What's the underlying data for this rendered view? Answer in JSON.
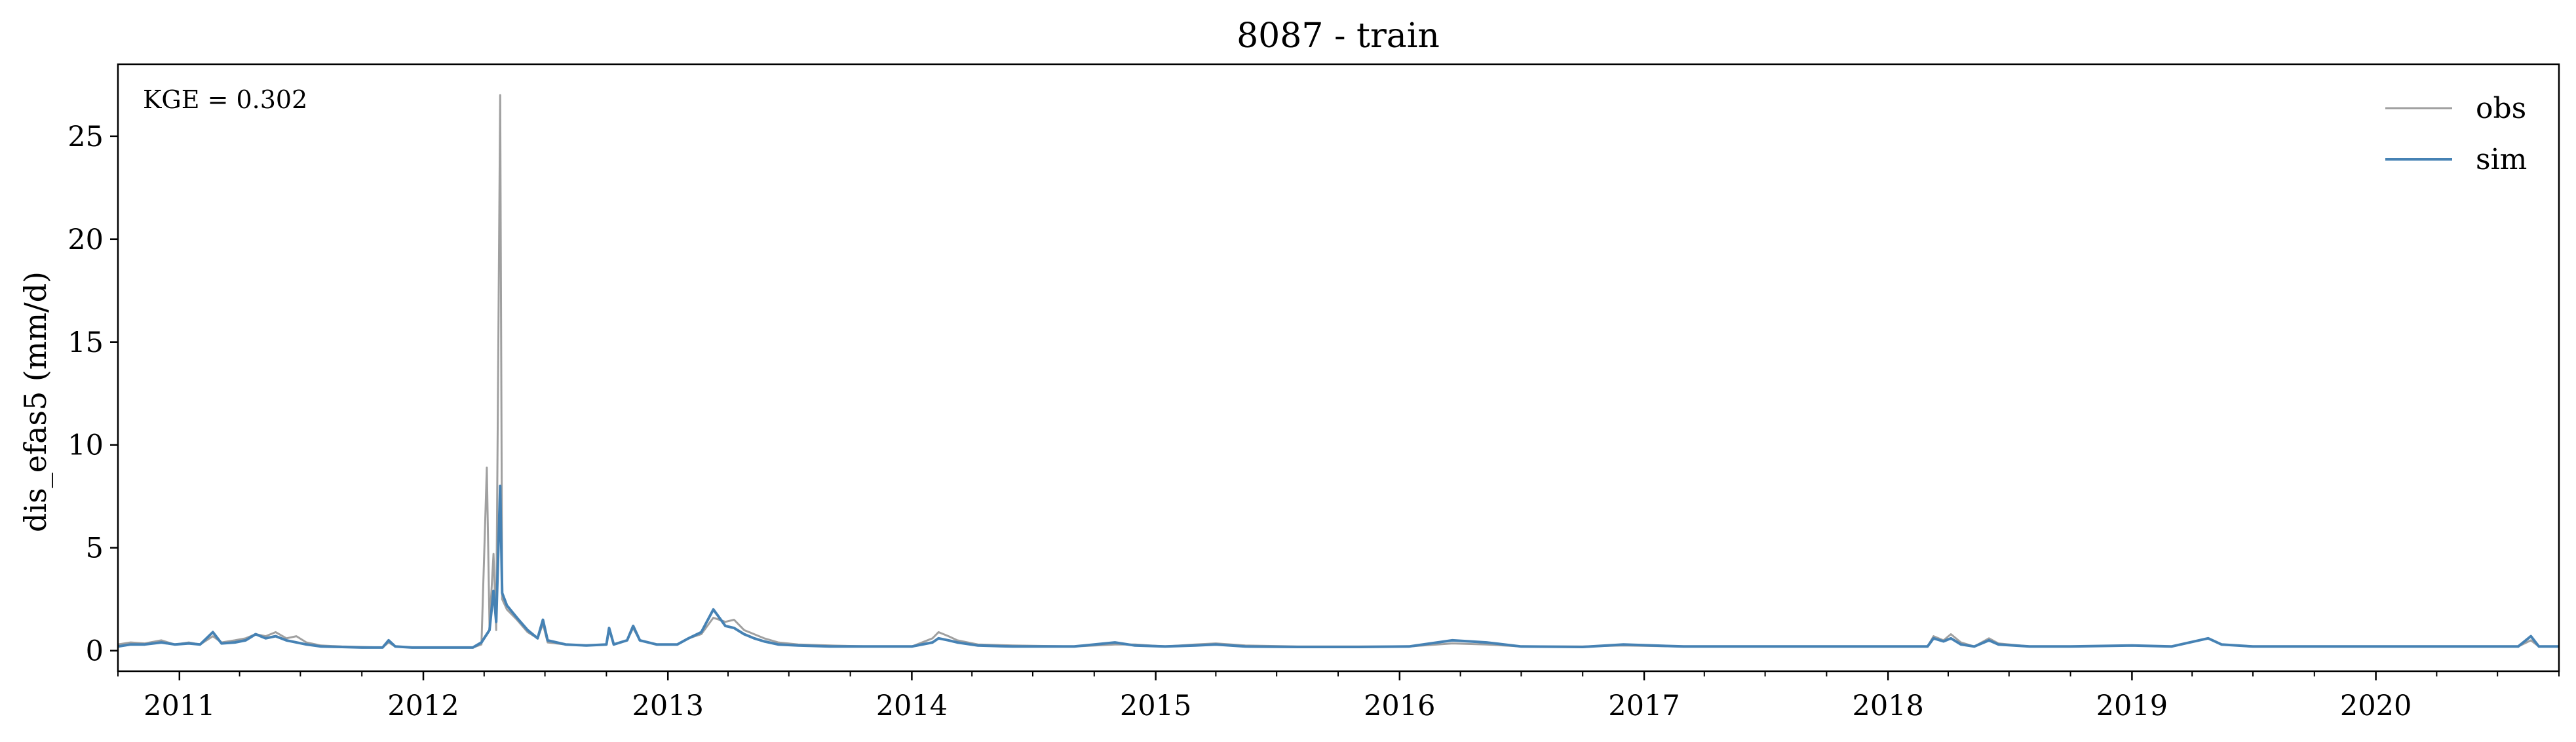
{
  "chart_data": {
    "type": "line",
    "title": "8087 - train",
    "ylabel": "dis_efas5 (mm/d)",
    "annotation": "KGE = 0.302",
    "xlim": [
      "2010-10-01",
      "2020-10-01"
    ],
    "ylim": [
      -1.0,
      28.5
    ],
    "yticks": [
      0,
      5,
      10,
      15,
      20,
      25
    ],
    "ytick_labels": [
      "0",
      "5",
      "10",
      "15",
      "20",
      "25"
    ],
    "xtick_labels": [
      "2011",
      "2012",
      "2013",
      "2014",
      "2015",
      "2016",
      "2017",
      "2018",
      "2019",
      "2020"
    ],
    "xtick_dates": [
      "2011-01-01",
      "2012-01-01",
      "2013-01-01",
      "2014-01-01",
      "2015-01-01",
      "2016-01-01",
      "2017-01-01",
      "2018-01-01",
      "2019-01-01",
      "2020-01-01"
    ],
    "grid": false,
    "legend": "top-right",
    "series": [
      {
        "name": "obs",
        "color": "#a0a0a0",
        "points": [
          [
            "2010-10-01",
            0.3
          ],
          [
            "2010-10-20",
            0.4
          ],
          [
            "2010-11-10",
            0.35
          ],
          [
            "2010-12-05",
            0.5
          ],
          [
            "2010-12-25",
            0.3
          ],
          [
            "2011-01-15",
            0.4
          ],
          [
            "2011-02-01",
            0.3
          ],
          [
            "2011-02-20",
            0.7
          ],
          [
            "2011-03-05",
            0.4
          ],
          [
            "2011-03-25",
            0.5
          ],
          [
            "2011-04-10",
            0.6
          ],
          [
            "2011-04-25",
            0.8
          ],
          [
            "2011-05-10",
            0.7
          ],
          [
            "2011-05-25",
            0.9
          ],
          [
            "2011-06-10",
            0.6
          ],
          [
            "2011-06-25",
            0.7
          ],
          [
            "2011-07-10",
            0.4
          ],
          [
            "2011-08-01",
            0.25
          ],
          [
            "2011-09-01",
            0.2
          ],
          [
            "2011-10-01",
            0.18
          ],
          [
            "2011-11-01",
            0.15
          ],
          [
            "2011-11-10",
            0.4
          ],
          [
            "2011-11-20",
            0.2
          ],
          [
            "2011-12-15",
            0.15
          ],
          [
            "2012-01-15",
            0.15
          ],
          [
            "2012-02-15",
            0.15
          ],
          [
            "2012-03-15",
            0.15
          ],
          [
            "2012-03-28",
            0.3
          ],
          [
            "2012-04-05",
            8.9
          ],
          [
            "2012-04-09",
            1.2
          ],
          [
            "2012-04-15",
            4.7
          ],
          [
            "2012-04-19",
            1.0
          ],
          [
            "2012-04-25",
            27.0
          ],
          [
            "2012-04-28",
            2.5
          ],
          [
            "2012-05-05",
            2.0
          ],
          [
            "2012-05-20",
            1.5
          ],
          [
            "2012-06-05",
            0.9
          ],
          [
            "2012-06-20",
            0.6
          ],
          [
            "2012-06-28",
            1.3
          ],
          [
            "2012-07-05",
            0.4
          ],
          [
            "2012-08-01",
            0.3
          ],
          [
            "2012-09-01",
            0.25
          ],
          [
            "2012-10-01",
            0.3
          ],
          [
            "2012-10-05",
            1.0
          ],
          [
            "2012-10-12",
            0.3
          ],
          [
            "2012-11-01",
            0.5
          ],
          [
            "2012-11-10",
            1.1
          ],
          [
            "2012-11-20",
            0.5
          ],
          [
            "2012-12-15",
            0.3
          ],
          [
            "2013-01-15",
            0.3
          ],
          [
            "2013-02-01",
            0.6
          ],
          [
            "2013-02-20",
            0.8
          ],
          [
            "2013-03-10",
            1.6
          ],
          [
            "2013-03-28",
            1.4
          ],
          [
            "2013-04-10",
            1.5
          ],
          [
            "2013-04-25",
            1.0
          ],
          [
            "2013-05-10",
            0.8
          ],
          [
            "2013-05-25",
            0.6
          ],
          [
            "2013-06-15",
            0.4
          ],
          [
            "2013-07-15",
            0.3
          ],
          [
            "2013-09-01",
            0.25
          ],
          [
            "2013-11-01",
            0.2
          ],
          [
            "2014-01-01",
            0.2
          ],
          [
            "2014-02-01",
            0.6
          ],
          [
            "2014-02-10",
            0.9
          ],
          [
            "2014-02-25",
            0.7
          ],
          [
            "2014-03-10",
            0.5
          ],
          [
            "2014-04-10",
            0.3
          ],
          [
            "2014-06-01",
            0.25
          ],
          [
            "2014-09-01",
            0.2
          ],
          [
            "2014-11-01",
            0.3
          ],
          [
            "2014-12-01",
            0.3
          ],
          [
            "2015-01-15",
            0.2
          ],
          [
            "2015-03-01",
            0.3
          ],
          [
            "2015-04-01",
            0.35
          ],
          [
            "2015-05-15",
            0.25
          ],
          [
            "2015-08-01",
            0.2
          ],
          [
            "2015-11-01",
            0.2
          ],
          [
            "2016-01-15",
            0.2
          ],
          [
            "2016-03-20",
            0.35
          ],
          [
            "2016-05-10",
            0.3
          ],
          [
            "2016-07-01",
            0.2
          ],
          [
            "2016-10-01",
            0.2
          ],
          [
            "2016-12-01",
            0.25
          ],
          [
            "2017-03-01",
            0.2
          ],
          [
            "2017-06-01",
            0.2
          ],
          [
            "2017-09-01",
            0.2
          ],
          [
            "2017-12-01",
            0.2
          ],
          [
            "2018-03-01",
            0.2
          ],
          [
            "2018-03-10",
            0.7
          ],
          [
            "2018-03-25",
            0.5
          ],
          [
            "2018-04-05",
            0.8
          ],
          [
            "2018-04-20",
            0.4
          ],
          [
            "2018-05-10",
            0.2
          ],
          [
            "2018-06-01",
            0.6
          ],
          [
            "2018-06-15",
            0.35
          ],
          [
            "2018-08-01",
            0.2
          ],
          [
            "2018-10-01",
            0.2
          ],
          [
            "2019-01-01",
            0.25
          ],
          [
            "2019-03-01",
            0.2
          ],
          [
            "2019-04-25",
            0.6
          ],
          [
            "2019-05-15",
            0.3
          ],
          [
            "2019-07-01",
            0.2
          ],
          [
            "2019-11-01",
            0.2
          ],
          [
            "2020-02-01",
            0.2
          ],
          [
            "2020-05-01",
            0.2
          ],
          [
            "2020-08-01",
            0.2
          ],
          [
            "2020-08-20",
            0.5
          ],
          [
            "2020-09-01",
            0.2
          ],
          [
            "2020-10-01",
            0.2
          ]
        ]
      },
      {
        "name": "sim",
        "color": "#4682b4",
        "points": [
          [
            "2010-10-01",
            0.2
          ],
          [
            "2010-10-20",
            0.3
          ],
          [
            "2010-11-10",
            0.3
          ],
          [
            "2010-12-05",
            0.4
          ],
          [
            "2010-12-25",
            0.3
          ],
          [
            "2011-01-15",
            0.35
          ],
          [
            "2011-02-01",
            0.3
          ],
          [
            "2011-02-20",
            0.9
          ],
          [
            "2011-03-05",
            0.35
          ],
          [
            "2011-03-25",
            0.4
          ],
          [
            "2011-04-10",
            0.5
          ],
          [
            "2011-04-25",
            0.8
          ],
          [
            "2011-05-10",
            0.6
          ],
          [
            "2011-05-25",
            0.7
          ],
          [
            "2011-06-10",
            0.5
          ],
          [
            "2011-06-25",
            0.4
          ],
          [
            "2011-07-10",
            0.3
          ],
          [
            "2011-08-01",
            0.2
          ],
          [
            "2011-09-01",
            0.18
          ],
          [
            "2011-10-01",
            0.15
          ],
          [
            "2011-11-01",
            0.15
          ],
          [
            "2011-11-10",
            0.5
          ],
          [
            "2011-11-20",
            0.2
          ],
          [
            "2011-12-15",
            0.15
          ],
          [
            "2012-01-15",
            0.15
          ],
          [
            "2012-02-15",
            0.15
          ],
          [
            "2012-03-15",
            0.15
          ],
          [
            "2012-03-28",
            0.4
          ],
          [
            "2012-04-05",
            0.8
          ],
          [
            "2012-04-09",
            1.0
          ],
          [
            "2012-04-15",
            2.9
          ],
          [
            "2012-04-19",
            1.4
          ],
          [
            "2012-04-25",
            8.0
          ],
          [
            "2012-04-28",
            2.8
          ],
          [
            "2012-05-05",
            2.2
          ],
          [
            "2012-05-20",
            1.6
          ],
          [
            "2012-06-05",
            1.0
          ],
          [
            "2012-06-20",
            0.6
          ],
          [
            "2012-06-28",
            1.5
          ],
          [
            "2012-07-05",
            0.5
          ],
          [
            "2012-08-01",
            0.3
          ],
          [
            "2012-09-01",
            0.25
          ],
          [
            "2012-10-01",
            0.3
          ],
          [
            "2012-10-05",
            1.1
          ],
          [
            "2012-10-12",
            0.3
          ],
          [
            "2012-11-01",
            0.5
          ],
          [
            "2012-11-10",
            1.2
          ],
          [
            "2012-11-20",
            0.5
          ],
          [
            "2012-12-15",
            0.3
          ],
          [
            "2013-01-15",
            0.3
          ],
          [
            "2013-02-01",
            0.6
          ],
          [
            "2013-02-20",
            0.9
          ],
          [
            "2013-03-10",
            2.0
          ],
          [
            "2013-03-28",
            1.2
          ],
          [
            "2013-04-10",
            1.1
          ],
          [
            "2013-04-25",
            0.8
          ],
          [
            "2013-05-10",
            0.6
          ],
          [
            "2013-05-25",
            0.45
          ],
          [
            "2013-06-15",
            0.3
          ],
          [
            "2013-07-15",
            0.25
          ],
          [
            "2013-09-01",
            0.2
          ],
          [
            "2013-11-01",
            0.2
          ],
          [
            "2014-01-01",
            0.2
          ],
          [
            "2014-02-01",
            0.4
          ],
          [
            "2014-02-10",
            0.6
          ],
          [
            "2014-02-25",
            0.5
          ],
          [
            "2014-03-10",
            0.4
          ],
          [
            "2014-04-10",
            0.25
          ],
          [
            "2014-06-01",
            0.2
          ],
          [
            "2014-09-01",
            0.2
          ],
          [
            "2014-11-01",
            0.4
          ],
          [
            "2014-12-01",
            0.25
          ],
          [
            "2015-01-15",
            0.2
          ],
          [
            "2015-03-01",
            0.25
          ],
          [
            "2015-04-01",
            0.3
          ],
          [
            "2015-05-15",
            0.2
          ],
          [
            "2015-08-01",
            0.18
          ],
          [
            "2015-11-01",
            0.18
          ],
          [
            "2016-01-15",
            0.2
          ],
          [
            "2016-03-20",
            0.5
          ],
          [
            "2016-05-10",
            0.4
          ],
          [
            "2016-07-01",
            0.2
          ],
          [
            "2016-10-01",
            0.18
          ],
          [
            "2016-12-01",
            0.3
          ],
          [
            "2017-03-01",
            0.2
          ],
          [
            "2017-06-01",
            0.2
          ],
          [
            "2017-09-01",
            0.2
          ],
          [
            "2017-12-01",
            0.2
          ],
          [
            "2018-03-01",
            0.2
          ],
          [
            "2018-03-10",
            0.6
          ],
          [
            "2018-03-25",
            0.45
          ],
          [
            "2018-04-05",
            0.6
          ],
          [
            "2018-04-20",
            0.3
          ],
          [
            "2018-05-10",
            0.2
          ],
          [
            "2018-06-01",
            0.5
          ],
          [
            "2018-06-15",
            0.3
          ],
          [
            "2018-08-01",
            0.2
          ],
          [
            "2018-10-01",
            0.2
          ],
          [
            "2019-01-01",
            0.25
          ],
          [
            "2019-03-01",
            0.2
          ],
          [
            "2019-04-25",
            0.6
          ],
          [
            "2019-05-15",
            0.3
          ],
          [
            "2019-07-01",
            0.2
          ],
          [
            "2019-11-01",
            0.2
          ],
          [
            "2020-02-01",
            0.2
          ],
          [
            "2020-05-01",
            0.2
          ],
          [
            "2020-08-01",
            0.2
          ],
          [
            "2020-08-20",
            0.7
          ],
          [
            "2020-09-01",
            0.2
          ],
          [
            "2020-10-01",
            0.2
          ]
        ]
      }
    ]
  }
}
